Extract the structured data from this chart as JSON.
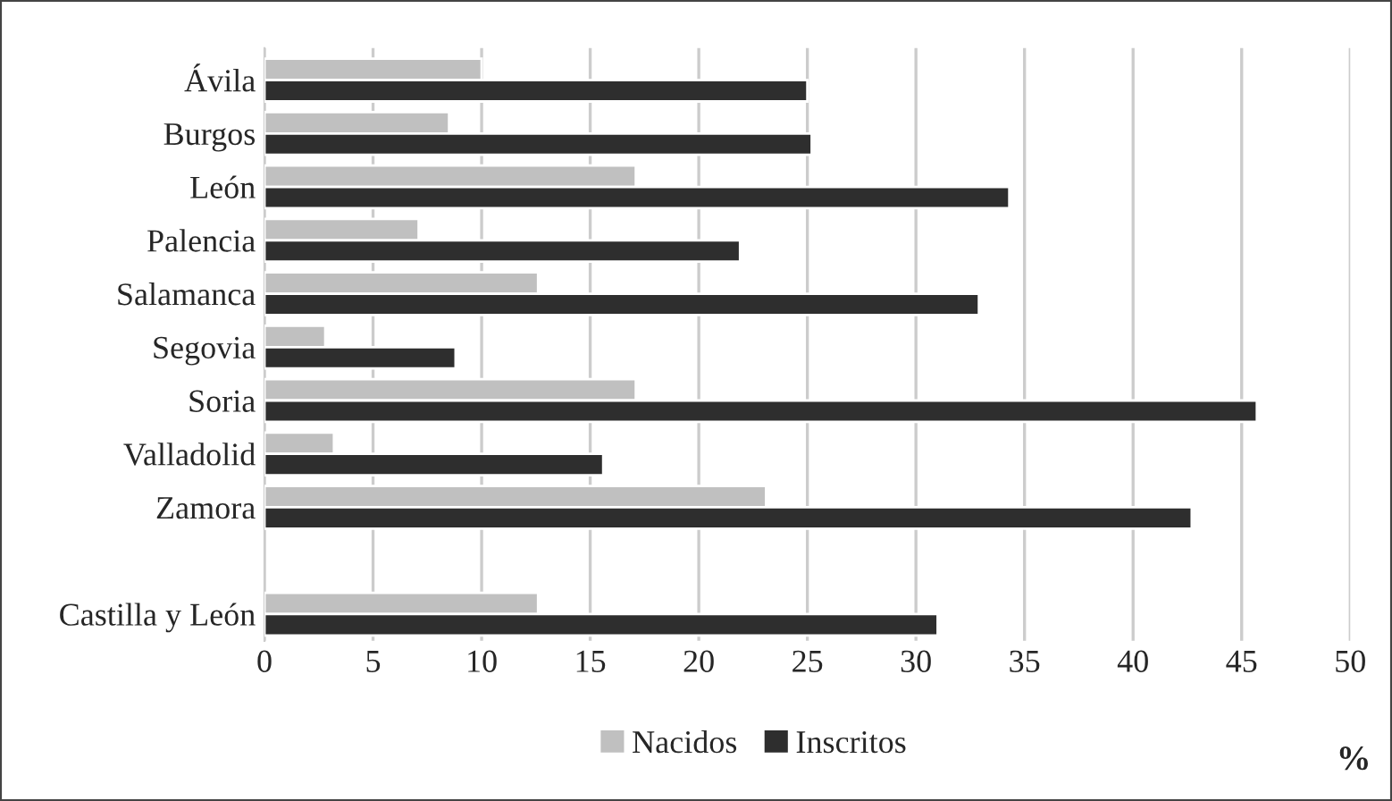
{
  "chart_data": {
    "type": "bar",
    "orientation": "horizontal",
    "categories": [
      "Ávila",
      "Burgos",
      "León",
      "Palencia",
      "Salamanca",
      "Segovia",
      "Soria",
      "Valladolid",
      "Zamora",
      null,
      "Castilla y León"
    ],
    "series": [
      {
        "name": "Nacidos",
        "color": "#c0c0c0",
        "values": [
          10.0,
          8.5,
          17.1,
          7.1,
          12.6,
          2.8,
          17.1,
          3.2,
          23.1,
          null,
          12.6
        ]
      },
      {
        "name": "Inscritos",
        "color": "#2e2e2e",
        "values": [
          25.0,
          25.2,
          34.3,
          21.9,
          32.9,
          8.8,
          45.7,
          15.6,
          42.7,
          null,
          31.0
        ]
      }
    ],
    "xlim": [
      0,
      50
    ],
    "xticks": [
      0,
      5,
      10,
      15,
      20,
      25,
      30,
      35,
      40,
      45,
      50
    ],
    "xlabel": "%",
    "grid": "x",
    "legend": "bottom"
  }
}
